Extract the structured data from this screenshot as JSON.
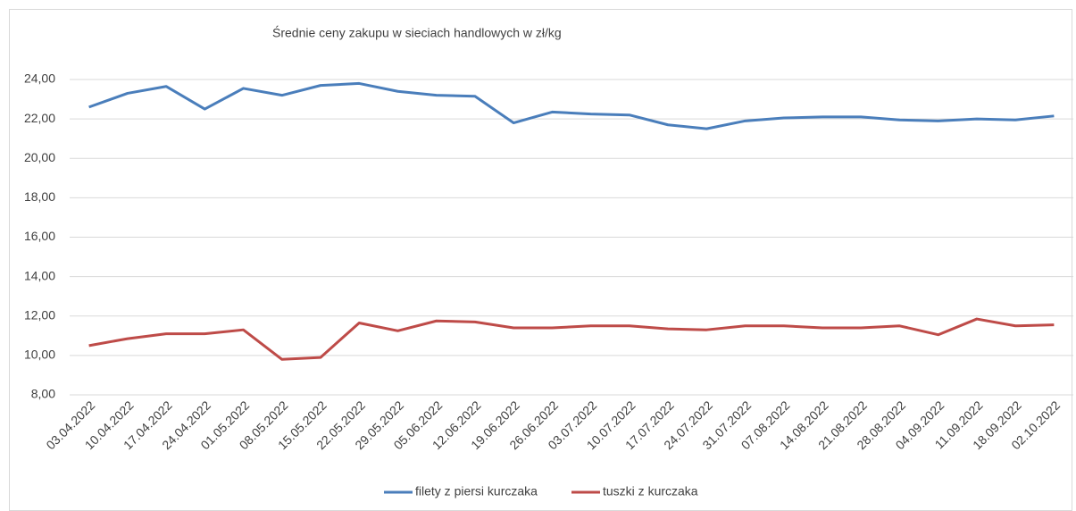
{
  "chart_data": {
    "type": "line",
    "title": "Średnie ceny zakupu w sieciach handlowych w zł/kg",
    "categories": [
      "03.04.2022",
      "10.04.2022",
      "17.04.2022",
      "24.04.2022",
      "01.05.2022",
      "08.05.2022",
      "15.05.2022",
      "22.05.2022",
      "29.05.2022",
      "05.06.2022",
      "12.06.2022",
      "19.06.2022",
      "26.06.2022",
      "03.07.2022",
      "10.07.2022",
      "17.07.2022",
      "24.07.2022",
      "31.07.2022",
      "07.08.2022",
      "14.08.2022",
      "21.08.2022",
      "28.08.2022",
      "04.09.2022",
      "11.09.2022",
      "18.09.2022",
      "02.10.2022"
    ],
    "series": [
      {
        "name": "filety z piersi kurczaka",
        "color": "#4a7ebb",
        "values": [
          22.6,
          23.3,
          23.65,
          22.5,
          23.55,
          23.2,
          23.7,
          23.8,
          23.4,
          23.2,
          23.15,
          21.8,
          22.35,
          22.25,
          22.2,
          21.7,
          21.5,
          21.9,
          22.05,
          22.1,
          22.1,
          21.95,
          21.9,
          22.0,
          21.95,
          22.15
        ]
      },
      {
        "name": "tuszki  z kurczaka",
        "color": "#be4b48",
        "values": [
          10.5,
          10.85,
          11.1,
          11.1,
          11.3,
          9.8,
          9.9,
          11.65,
          11.25,
          11.75,
          11.7,
          11.4,
          11.4,
          11.5,
          11.5,
          11.35,
          11.3,
          11.5,
          11.5,
          11.4,
          11.4,
          11.5,
          11.05,
          11.85,
          11.5,
          11.55
        ]
      }
    ],
    "ylim": [
      8,
      24
    ],
    "yticks": [
      {
        "value": 8,
        "label": "8,00"
      },
      {
        "value": 10,
        "label": "10,00"
      },
      {
        "value": 12,
        "label": "12,00"
      },
      {
        "value": 14,
        "label": "14,00"
      },
      {
        "value": 16,
        "label": "16,00"
      },
      {
        "value": 18,
        "label": "18,00"
      },
      {
        "value": 20,
        "label": "20,00"
      },
      {
        "value": 22,
        "label": "22,00"
      },
      {
        "value": 24,
        "label": "24,00"
      }
    ],
    "grid": true,
    "legend": "bottom"
  }
}
